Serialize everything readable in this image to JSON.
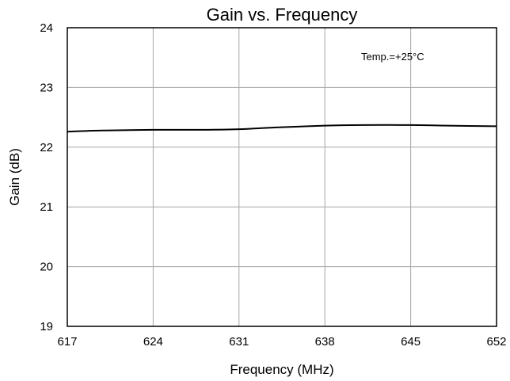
{
  "chart_data": {
    "type": "line",
    "title": "Gain vs. Frequency",
    "xlabel": "Frequency (MHz)",
    "ylabel": "Gain (dB)",
    "xlim": [
      617,
      652
    ],
    "ylim": [
      19,
      24
    ],
    "xticks": [
      617,
      624,
      631,
      638,
      645,
      652
    ],
    "yticks": [
      19,
      20,
      21,
      22,
      23,
      24
    ],
    "grid": true,
    "annotation": "Temp.=+25°C",
    "series": [
      {
        "color": "#000000",
        "x": [
          617,
          620,
          624,
          628,
          631,
          634,
          638,
          641,
          645,
          648,
          652
        ],
        "y": [
          22.26,
          22.28,
          22.29,
          22.29,
          22.3,
          22.33,
          22.36,
          22.37,
          22.37,
          22.36,
          22.35
        ]
      }
    ]
  }
}
